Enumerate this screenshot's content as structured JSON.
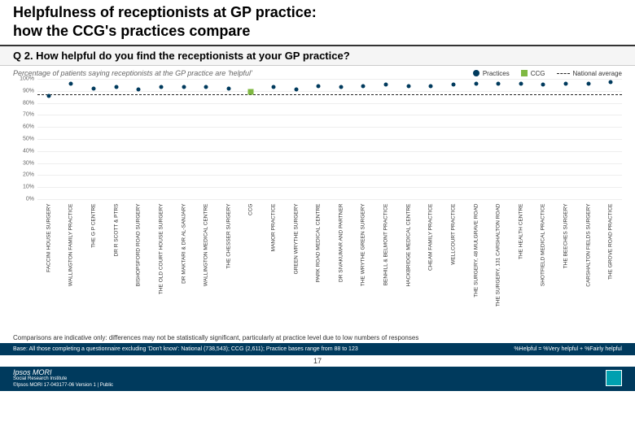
{
  "header": {
    "title_line1": "Helpfulness of receptionists at GP practice:",
    "title_line2": "how the CCG's practices compare"
  },
  "question": "Q 2. How helpful do you find the receptionists at your GP practice?",
  "subtitle": "Percentage of patients saying receptionists at the GP practice are 'helpful'",
  "legend": {
    "practices": "Practices",
    "ccg": "CCG",
    "national": "National average"
  },
  "chart": {
    "type": "scatter-column",
    "ylim": [
      0,
      100
    ],
    "ytick_step": 10,
    "y_suffix": "%",
    "national_avg": 87,
    "ccg_value": 89,
    "ccg_position": 9,
    "practice_color": "#003a5d",
    "ccg_color": "#7fb842",
    "national_color": "#222222",
    "grid_color": "#eeeeee",
    "practices": [
      {
        "name": "FACCINI HOUSE SURGERY",
        "value": 86
      },
      {
        "name": "WALLINGTON FAMILY PRACTICE",
        "value": 96
      },
      {
        "name": "THE G P CENTRE",
        "value": 92
      },
      {
        "name": "DR R SCOTT & PTRS",
        "value": 93
      },
      {
        "name": "BISHOPSFORD ROAD SURGERY",
        "value": 91
      },
      {
        "name": "THE OLD COURT HOUSE SURGERY",
        "value": 93
      },
      {
        "name": "DR MAKTARI & DR AL-SANJARY",
        "value": 93
      },
      {
        "name": "WALLINGTON MEDICAL CENTRE",
        "value": 93
      },
      {
        "name": "THE CHESSER SURGERY",
        "value": 92
      },
      {
        "name": "CCG",
        "value": 89,
        "is_ccg": true
      },
      {
        "name": "MANOR PRACTICE",
        "value": 93
      },
      {
        "name": "GREEN WRYTHE SURGERY",
        "value": 91
      },
      {
        "name": "PARK ROAD MEDICAL CENTRE",
        "value": 94
      },
      {
        "name": "DR SIVAKUMAR AND PARTNER",
        "value": 93
      },
      {
        "name": "THE WRYTHE GREEN SURGERY",
        "value": 94
      },
      {
        "name": "BENHILL & BELMONT PRACTICE",
        "value": 95
      },
      {
        "name": "HACKBRIDGE MEDICAL CENTRE",
        "value": 94
      },
      {
        "name": "CHEAM FAMILY PRACTICE",
        "value": 94
      },
      {
        "name": "WELLCOURT PRACTICE",
        "value": 95
      },
      {
        "name": "THE SURGERY, 48 MULGRAVE ROAD",
        "value": 96
      },
      {
        "name": "THE SURGERY, 131 CARSHALTON ROAD",
        "value": 96
      },
      {
        "name": "THE HEALTH CENTRE",
        "value": 96
      },
      {
        "name": "SHOTFIELD MEDICAL PRACTICE",
        "value": 95
      },
      {
        "name": "THE BEECHES SURGERY",
        "value": 96
      },
      {
        "name": "CARSHALTON FIELDS SURGERY",
        "value": 96
      },
      {
        "name": "THE GROVE ROAD PRACTICE",
        "value": 97
      }
    ]
  },
  "comparison_note": "Comparisons are indicative only: differences may not be statistically significant, particularly at practice level due to low numbers of responses",
  "footer": {
    "base": "Base: All those completing a questionnaire excluding 'Don't know': National (738,543); CCG (2,611); Practice bases range from 88 to 123",
    "helpful_def": "%Helpful = %Very helpful + %Fairly helpful",
    "ipsos": "Ipsos MORI",
    "social": "Social Research Institute",
    "copyright": "©Ipsos MORI    17-043177-06 Version 1 | Public",
    "page": "17"
  }
}
